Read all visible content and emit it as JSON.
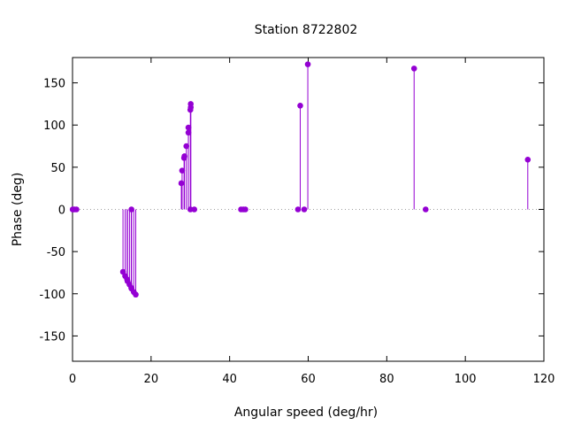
{
  "chart_data": {
    "type": "scatter",
    "style": "impulses-with-points",
    "title": "Station 8722802",
    "xlabel": "Angular speed (deg/hr)",
    "ylabel": "Phase (deg)",
    "xlim": [
      0,
      120
    ],
    "ylim": [
      -180,
      180
    ],
    "xticks": [
      0,
      20,
      40,
      60,
      80,
      100,
      120
    ],
    "yticks": [
      -150,
      -100,
      -50,
      0,
      50,
      100,
      150
    ],
    "zero_line": true,
    "grid": false,
    "color": "#9400d3",
    "series": [
      {
        "points": [
          [
            0.04,
            0
          ],
          [
            0.08,
            0
          ],
          [
            0.5,
            0
          ],
          [
            1.0,
            0
          ],
          [
            12.85,
            -74
          ],
          [
            13.4,
            -79
          ],
          [
            13.9,
            -83
          ],
          [
            14.0,
            -85
          ],
          [
            14.5,
            -89
          ],
          [
            14.96,
            -93
          ],
          [
            15.0,
            0
          ],
          [
            15.04,
            -94
          ],
          [
            15.6,
            -98
          ],
          [
            16.1,
            -101
          ],
          [
            27.7,
            31
          ],
          [
            27.9,
            46
          ],
          [
            28.4,
            61
          ],
          [
            28.5,
            63
          ],
          [
            28.98,
            75
          ],
          [
            29.5,
            91
          ],
          [
            29.5,
            97
          ],
          [
            30.0,
            118
          ],
          [
            30.0,
            0
          ],
          [
            30.1,
            121
          ],
          [
            30.1,
            125
          ],
          [
            31.0,
            0
          ],
          [
            42.9,
            0
          ],
          [
            43.5,
            0
          ],
          [
            44.0,
            0
          ],
          [
            57.4,
            0
          ],
          [
            57.97,
            123
          ],
          [
            58.98,
            0
          ],
          [
            59.9,
            172
          ],
          [
            86.96,
            167
          ],
          [
            89.9,
            0
          ],
          [
            115.9,
            59
          ]
        ]
      }
    ]
  }
}
